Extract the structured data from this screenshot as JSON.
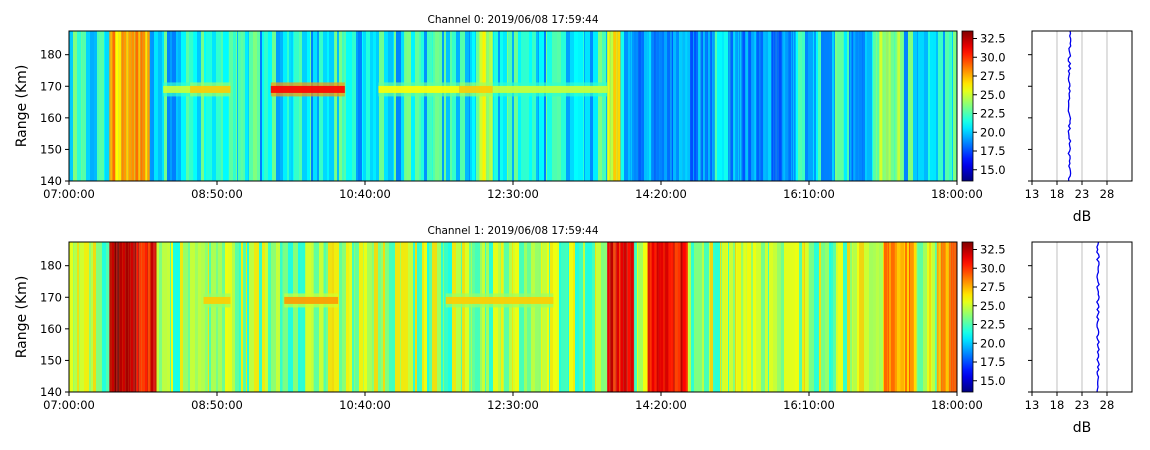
{
  "figure": {
    "panels": [
      {
        "title": "Channel 0: 2019/06/08 17:59:44",
        "ylabel": "Range (Km)",
        "yticks": [
          "140",
          "150",
          "160",
          "170",
          "180"
        ],
        "xticks": [
          "07:00:00",
          "08:50:00",
          "10:40:00",
          "12:30:00",
          "14:20:00",
          "16:10:00",
          "18:00:00"
        ],
        "colorbar_ticks": [
          "15.0",
          "17.5",
          "20.0",
          "22.5",
          "25.0",
          "27.5",
          "30.0",
          "32.5"
        ],
        "profile_xticks": [
          "13",
          "18",
          "23",
          "28"
        ],
        "profile_xlabel": "dB"
      },
      {
        "title": "Channel 1: 2019/06/08 17:59:44",
        "ylabel": "Range (Km)",
        "yticks": [
          "140",
          "150",
          "160",
          "170",
          "180"
        ],
        "xticks": [
          "07:00:00",
          "08:50:00",
          "10:40:00",
          "12:30:00",
          "14:20:00",
          "16:10:00",
          "18:00:00"
        ],
        "colorbar_ticks": [
          "15.0",
          "17.5",
          "20.0",
          "22.5",
          "25.0",
          "27.5",
          "30.0",
          "32.5"
        ],
        "profile_xticks": [
          "13",
          "18",
          "23",
          "28"
        ],
        "profile_xlabel": "dB"
      }
    ]
  },
  "chart_data": [
    {
      "type": "heatmap",
      "title": "Channel 0: 2019/06/08 17:59:44",
      "ylabel": "Range (Km)",
      "xlim": [
        "07:00:00",
        "18:00:00"
      ],
      "ylim": [
        140,
        187.5
      ],
      "colormap": "jet",
      "colorbar_range": [
        13.5,
        33.5
      ],
      "background_db": 21,
      "band_center_km": 169,
      "band_segments": [
        {
          "start": "08:10:00",
          "end": "08:30:00",
          "db": 25
        },
        {
          "start": "08:30:00",
          "end": "09:00:00",
          "db": 27
        },
        {
          "start": "09:30:00",
          "end": "10:25:00",
          "db": 31
        },
        {
          "start": "10:50:00",
          "end": "11:50:00",
          "db": 26
        },
        {
          "start": "11:50:00",
          "end": "12:15:00",
          "db": 27
        },
        {
          "start": "12:15:00",
          "end": "13:40:00",
          "db": 25
        }
      ],
      "column_features": [
        {
          "start": "07:30:00",
          "end": "08:00:00",
          "db": 27.5
        },
        {
          "start": "12:05:00",
          "end": "12:15:00",
          "db": 25
        },
        {
          "start": "13:40:00",
          "end": "13:50:00",
          "db": 26
        },
        {
          "start": "14:00:00",
          "end": "15:00:00",
          "db": 19
        },
        {
          "start": "15:10:00",
          "end": "16:00:00",
          "db": 19
        },
        {
          "start": "16:40:00",
          "end": "16:50:00",
          "db": 19
        },
        {
          "start": "17:00:00",
          "end": "17:20:00",
          "db": 24
        }
      ],
      "profile": {
        "xlabel": "dB",
        "xlim": [
          13,
          33
        ],
        "xticks": [
          13,
          18,
          23,
          28
        ],
        "mean_db": 20.5
      }
    },
    {
      "type": "heatmap",
      "title": "Channel 1: 2019/06/08 17:59:44",
      "ylabel": "Range (Km)",
      "xlim": [
        "07:00:00",
        "18:00:00"
      ],
      "ylim": [
        140,
        187.5
      ],
      "colormap": "jet",
      "colorbar_range": [
        13.5,
        33.5
      ],
      "background_db": 24,
      "band_center_km": 169,
      "band_segments": [
        {
          "start": "08:40:00",
          "end": "09:00:00",
          "db": 27
        },
        {
          "start": "09:40:00",
          "end": "10:20:00",
          "db": 28
        },
        {
          "start": "11:40:00",
          "end": "13:00:00",
          "db": 27
        }
      ],
      "column_features": [
        {
          "start": "07:30:00",
          "end": "07:50:00",
          "db": 33
        },
        {
          "start": "07:50:00",
          "end": "08:05:00",
          "db": 31
        },
        {
          "start": "13:40:00",
          "end": "14:00:00",
          "db": 31
        },
        {
          "start": "14:10:00",
          "end": "14:40:00",
          "db": 31
        },
        {
          "start": "17:05:00",
          "end": "17:30:00",
          "db": 28
        },
        {
          "start": "17:45:00",
          "end": "18:00:00",
          "db": 28
        }
      ],
      "profile": {
        "xlabel": "dB",
        "xlim": [
          13,
          33
        ],
        "xticks": [
          13,
          18,
          23,
          28
        ],
        "mean_db": 26.2
      }
    }
  ]
}
